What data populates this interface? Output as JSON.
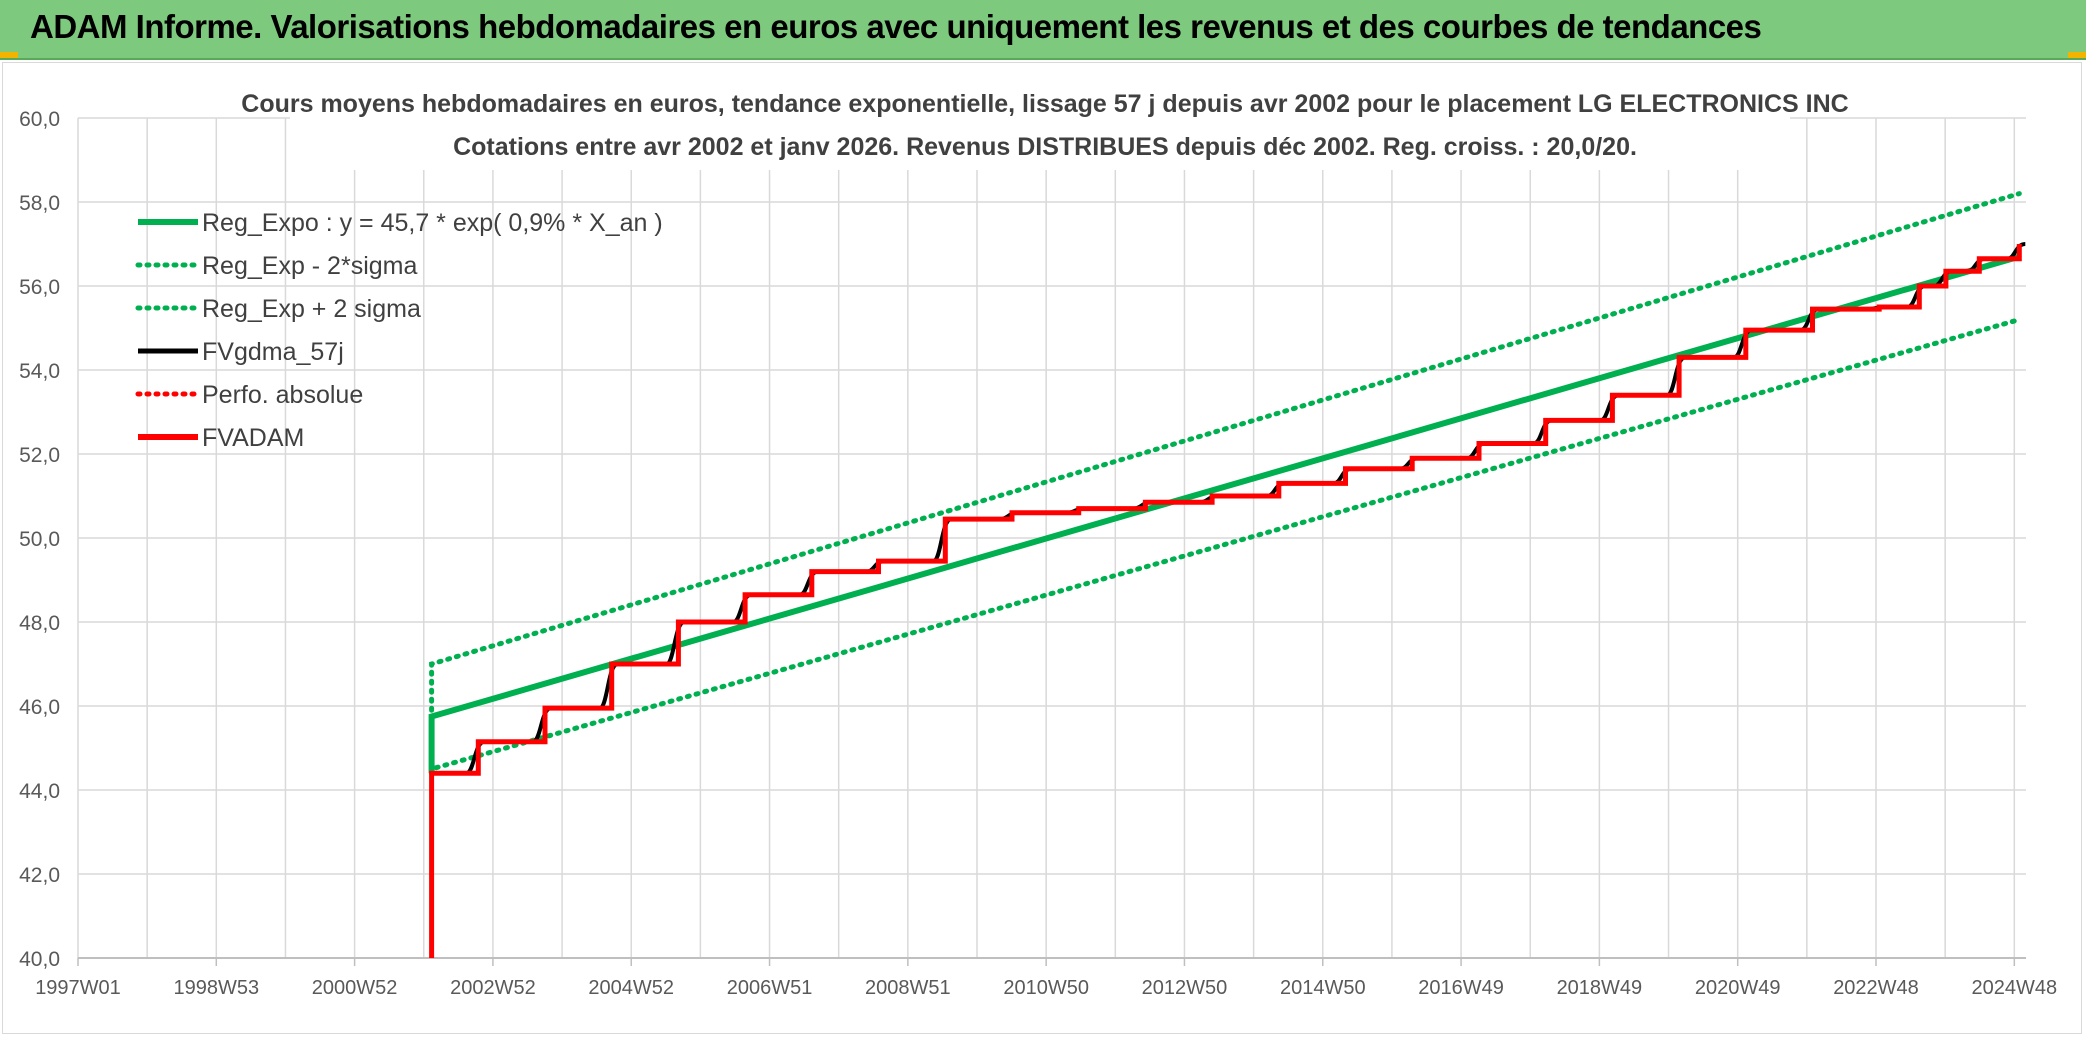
{
  "header": {
    "title": "ADAM Informe. Valorisations hebdomadaires en euros avec uniquement les revenus et des courbes de tendances"
  },
  "colors": {
    "banner": "#7dc97d",
    "reg_green": "#00b050",
    "red": "#ff0000",
    "black": "#000000",
    "grid": "#d9d9d9"
  },
  "chart_data": {
    "type": "line",
    "title": "Cours moyens hebdomadaires en euros, tendance exponentielle, lissage 57 j depuis avr 2002 pour le placement LG ELECTRONICS INC",
    "subtitle": "Cotations entre avr 2002 et janv 2026. Revenus DISTRIBUES depuis déc 2002. Reg. croiss. : 20,0/20.",
    "xlabel": "",
    "ylabel": "",
    "ylim": [
      40,
      60
    ],
    "yticks": [
      "40,0",
      "42,0",
      "44,0",
      "46,0",
      "48,0",
      "50,0",
      "52,0",
      "54,0",
      "56,0",
      "58,0",
      "60,0"
    ],
    "xlim": [
      1997.0,
      2026.2
    ],
    "xticks": [
      "1997W01",
      "1998W53",
      "2000W52",
      "2002W52",
      "2004W52",
      "2006W51",
      "2008W51",
      "2010W50",
      "2012W50",
      "2014W50",
      "2016W49",
      "2018W49",
      "2020W49",
      "2022W48",
      "2024W48"
    ],
    "grid": true,
    "legend_position": "top-left",
    "series": [
      {
        "name": "Reg_Expo : y = 45,7 * exp( 0,9% *  X_an )",
        "style": "solid-thick",
        "color": "#00b050",
        "x": [
          2002.3,
          2026.1
        ],
        "y": [
          45.75,
          56.7
        ]
      },
      {
        "name": "Reg_Exp - 2*sigma",
        "style": "dotted",
        "color": "#00b050",
        "x": [
          2002.3,
          2026.1
        ],
        "y": [
          44.5,
          55.2
        ]
      },
      {
        "name": "Reg_Exp + 2 sigma",
        "style": "dotted",
        "color": "#00b050",
        "x": [
          2002.3,
          2026.1
        ],
        "y": [
          47.0,
          58.2
        ]
      },
      {
        "name": "FVgdma_57j",
        "style": "solid",
        "color": "#000000",
        "x": [
          2002.3,
          2003.0,
          2004.0,
          2005.0,
          2006.0,
          2007.0,
          2008.0,
          2009.0,
          2010.0,
          2011.0,
          2012.0,
          2013.0,
          2014.0,
          2015.0,
          2016.0,
          2017.0,
          2018.0,
          2019.0,
          2020.0,
          2021.0,
          2022.0,
          2023.0,
          2024.0,
          2024.6,
          2025.0,
          2025.5,
          2026.1
        ],
        "y": [
          44.4,
          45.15,
          45.95,
          47.0,
          48.0,
          48.65,
          49.2,
          49.45,
          50.45,
          50.6,
          50.7,
          50.85,
          51.0,
          51.3,
          51.65,
          51.9,
          52.25,
          52.8,
          53.4,
          54.3,
          54.95,
          55.45,
          55.5,
          56.0,
          56.35,
          56.65,
          57.0
        ]
      },
      {
        "name": "Perfo. absolue",
        "style": "dotted",
        "color": "#ff0000",
        "x": [],
        "y": []
      },
      {
        "name": "FVADAM",
        "style": "step-thick",
        "color": "#ff0000",
        "x": [
          2002.3,
          2003.0,
          2004.0,
          2005.0,
          2006.0,
          2007.0,
          2008.0,
          2009.0,
          2010.0,
          2011.0,
          2012.0,
          2013.0,
          2014.0,
          2015.0,
          2016.0,
          2017.0,
          2018.0,
          2019.0,
          2020.0,
          2021.0,
          2022.0,
          2023.0,
          2024.0,
          2024.6,
          2025.0,
          2025.5,
          2026.1
        ],
        "y": [
          44.4,
          45.15,
          45.95,
          47.0,
          48.0,
          48.65,
          49.2,
          49.45,
          50.45,
          50.6,
          50.7,
          50.85,
          51.0,
          51.3,
          51.65,
          51.9,
          52.25,
          52.8,
          53.4,
          54.3,
          54.95,
          55.45,
          55.5,
          56.0,
          56.35,
          56.65,
          57.0
        ]
      }
    ]
  }
}
